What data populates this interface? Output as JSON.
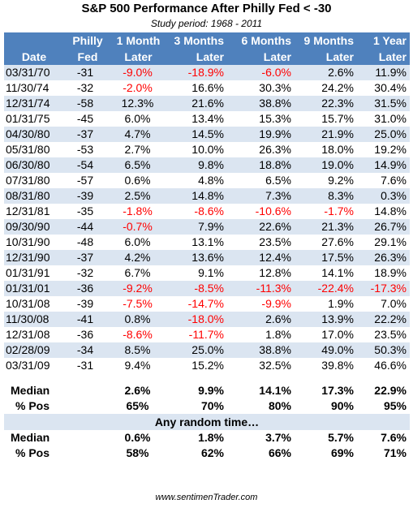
{
  "header": {
    "title": "S&P 500 Performance After Philly Fed < -30",
    "subtitle": "Study period:  1968 - 2011"
  },
  "columns": [
    {
      "top": "",
      "bottom": "Date"
    },
    {
      "top": "Philly",
      "bottom": "Fed"
    },
    {
      "top": "1 Month",
      "bottom": "Later"
    },
    {
      "top": "3 Months",
      "bottom": "Later"
    },
    {
      "top": "6 Months",
      "bottom": "Later"
    },
    {
      "top": "9 Months",
      "bottom": "Later"
    },
    {
      "top": "1 Year",
      "bottom": "Later"
    }
  ],
  "chart_data": {
    "type": "table",
    "title": "S&P 500 Performance After Philly Fed < -30",
    "rows": [
      {
        "date": "03/31/70",
        "philly": "-31",
        "m1": "-9.0%",
        "m3": "-18.9%",
        "m6": "-6.0%",
        "m9": "2.6%",
        "y1": "11.9%"
      },
      {
        "date": "11/30/74",
        "philly": "-32",
        "m1": "-2.0%",
        "m3": "16.6%",
        "m6": "30.3%",
        "m9": "24.2%",
        "y1": "30.4%"
      },
      {
        "date": "12/31/74",
        "philly": "-58",
        "m1": "12.3%",
        "m3": "21.6%",
        "m6": "38.8%",
        "m9": "22.3%",
        "y1": "31.5%"
      },
      {
        "date": "01/31/75",
        "philly": "-45",
        "m1": "6.0%",
        "m3": "13.4%",
        "m6": "15.3%",
        "m9": "15.7%",
        "y1": "31.0%"
      },
      {
        "date": "04/30/80",
        "philly": "-37",
        "m1": "4.7%",
        "m3": "14.5%",
        "m6": "19.9%",
        "m9": "21.9%",
        "y1": "25.0%"
      },
      {
        "date": "05/31/80",
        "philly": "-53",
        "m1": "2.7%",
        "m3": "10.0%",
        "m6": "26.3%",
        "m9": "18.0%",
        "y1": "19.2%"
      },
      {
        "date": "06/30/80",
        "philly": "-54",
        "m1": "6.5%",
        "m3": "9.8%",
        "m6": "18.8%",
        "m9": "19.0%",
        "y1": "14.9%"
      },
      {
        "date": "07/31/80",
        "philly": "-57",
        "m1": "0.6%",
        "m3": "4.8%",
        "m6": "6.5%",
        "m9": "9.2%",
        "y1": "7.6%"
      },
      {
        "date": "08/31/80",
        "philly": "-39",
        "m1": "2.5%",
        "m3": "14.8%",
        "m6": "7.3%",
        "m9": "8.3%",
        "y1": "0.3%"
      },
      {
        "date": "12/31/81",
        "philly": "-35",
        "m1": "-1.8%",
        "m3": "-8.6%",
        "m6": "-10.6%",
        "m9": "-1.7%",
        "y1": "14.8%"
      },
      {
        "date": "09/30/90",
        "philly": "-44",
        "m1": "-0.7%",
        "m3": "7.9%",
        "m6": "22.6%",
        "m9": "21.3%",
        "y1": "26.7%"
      },
      {
        "date": "10/31/90",
        "philly": "-48",
        "m1": "6.0%",
        "m3": "13.1%",
        "m6": "23.5%",
        "m9": "27.6%",
        "y1": "29.1%"
      },
      {
        "date": "12/31/90",
        "philly": "-37",
        "m1": "4.2%",
        "m3": "13.6%",
        "m6": "12.4%",
        "m9": "17.5%",
        "y1": "26.3%"
      },
      {
        "date": "01/31/91",
        "philly": "-32",
        "m1": "6.7%",
        "m3": "9.1%",
        "m6": "12.8%",
        "m9": "14.1%",
        "y1": "18.9%"
      },
      {
        "date": "01/31/01",
        "philly": "-36",
        "m1": "-9.2%",
        "m3": "-8.5%",
        "m6": "-11.3%",
        "m9": "-22.4%",
        "y1": "-17.3%"
      },
      {
        "date": "10/31/08",
        "philly": "-39",
        "m1": "-7.5%",
        "m3": "-14.7%",
        "m6": "-9.9%",
        "m9": "1.9%",
        "y1": "7.0%"
      },
      {
        "date": "11/30/08",
        "philly": "-41",
        "m1": "0.8%",
        "m3": "-18.0%",
        "m6": "2.6%",
        "m9": "13.9%",
        "y1": "22.2%"
      },
      {
        "date": "12/31/08",
        "philly": "-36",
        "m1": "-8.6%",
        "m3": "-11.7%",
        "m6": "1.8%",
        "m9": "17.0%",
        "y1": "23.5%"
      },
      {
        "date": "02/28/09",
        "philly": "-34",
        "m1": "8.5%",
        "m3": "25.0%",
        "m6": "38.8%",
        "m9": "49.0%",
        "y1": "50.3%"
      },
      {
        "date": "03/31/09",
        "philly": "-31",
        "m1": "9.4%",
        "m3": "15.2%",
        "m6": "32.5%",
        "m9": "39.8%",
        "y1": "46.6%"
      }
    ],
    "summary": [
      {
        "label": "Median",
        "m1": "2.6%",
        "m3": "9.9%",
        "m6": "14.1%",
        "m9": "17.3%",
        "y1": "22.9%"
      },
      {
        "label": "% Pos",
        "m1": "65%",
        "m3": "70%",
        "m6": "80%",
        "m9": "90%",
        "y1": "95%"
      }
    ],
    "random_label": "Any random time…",
    "random_summary": [
      {
        "label": "Median",
        "m1": "0.6%",
        "m3": "1.8%",
        "m6": "3.7%",
        "m9": "5.7%",
        "y1": "7.6%"
      },
      {
        "label": "% Pos",
        "m1": "58%",
        "m3": "62%",
        "m6": "66%",
        "m9": "69%",
        "y1": "71%"
      }
    ]
  },
  "colors": {
    "header_bg": "#4f81bd",
    "band": "#dbe5f1",
    "negative": "#ff0000"
  },
  "footer": "www.sentimenTrader.com"
}
